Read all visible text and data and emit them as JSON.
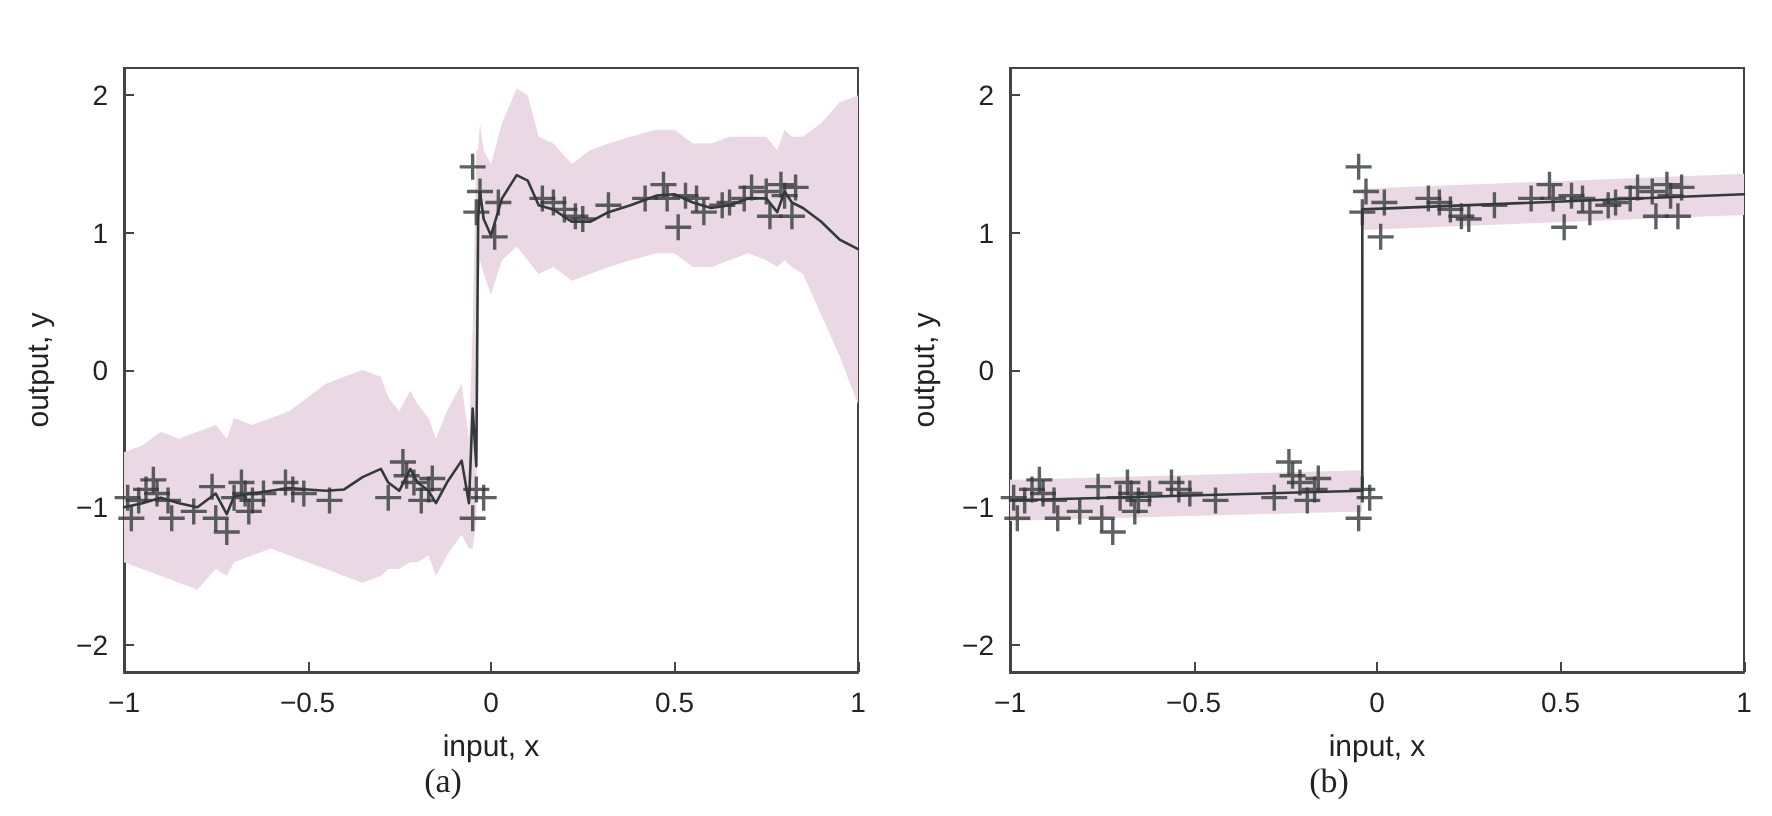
{
  "chart_data": [
    {
      "type": "scatter",
      "title": "(a)",
      "xlabel": "input, x",
      "ylabel": "output, y",
      "xlim": [
        -1,
        1
      ],
      "xticks": [
        -1,
        -0.5,
        0,
        0.5,
        1
      ],
      "ylim": [
        -2.2,
        2.2
      ],
      "yticks": [
        -2,
        -1,
        0,
        1,
        2
      ],
      "grid": false,
      "series": [
        {
          "type": "scatter",
          "marker": "cross",
          "color": "#333a3a",
          "x": [
            -0.99,
            -0.98,
            -0.96,
            -0.94,
            -0.92,
            -0.91,
            -0.88,
            -0.87,
            -0.81,
            -0.76,
            -0.75,
            -0.72,
            -0.7,
            -0.68,
            -0.67,
            -0.66,
            -0.65,
            -0.62,
            -0.56,
            -0.54,
            -0.51,
            -0.44,
            -0.28,
            -0.24,
            -0.23,
            -0.21,
            -0.19,
            -0.17,
            -0.16,
            -0.05,
            -0.04,
            -0.02,
            -0.05,
            -0.04,
            -0.03,
            0.01,
            0.02,
            0.14,
            0.17,
            0.2,
            0.23,
            0.25,
            0.32,
            0.42,
            0.47,
            0.48,
            0.51,
            0.53,
            0.56,
            0.58,
            0.63,
            0.65,
            0.69,
            0.71,
            0.75,
            0.76,
            0.79,
            0.8,
            0.82,
            0.83
          ],
          "values": [
            -0.93,
            -1.08,
            -0.95,
            -0.87,
            -0.8,
            -0.9,
            -0.95,
            -1.08,
            -1.03,
            -0.85,
            -1.08,
            -1.18,
            -0.93,
            -0.82,
            -0.9,
            -1.03,
            -0.95,
            -0.9,
            -0.82,
            -0.87,
            -0.9,
            -0.95,
            -0.93,
            -0.67,
            -0.77,
            -0.82,
            -0.95,
            -0.87,
            -0.79,
            -1.08,
            -0.87,
            -0.93,
            1.48,
            1.15,
            1.3,
            0.97,
            1.22,
            1.25,
            1.22,
            1.17,
            1.12,
            1.1,
            1.2,
            1.25,
            1.35,
            1.25,
            1.04,
            1.27,
            1.25,
            1.15,
            1.2,
            1.22,
            1.25,
            1.33,
            1.3,
            1.12,
            1.35,
            1.27,
            1.12,
            1.33
          ]
        },
        {
          "type": "line",
          "marker": "none",
          "line_style": "solid",
          "color": "#333a3a",
          "x": [
            -1,
            -0.95,
            -0.9,
            -0.85,
            -0.8,
            -0.75,
            -0.72,
            -0.7,
            -0.65,
            -0.6,
            -0.55,
            -0.5,
            -0.45,
            -0.4,
            -0.35,
            -0.3,
            -0.28,
            -0.25,
            -0.22,
            -0.2,
            -0.17,
            -0.15,
            -0.12,
            -0.08,
            -0.06,
            -0.05,
            -0.04,
            -0.035,
            -0.03,
            -0.02,
            0,
            0.03,
            0.07,
            0.1,
            0.13,
            0.17,
            0.22,
            0.27,
            0.32,
            0.38,
            0.45,
            0.5,
            0.55,
            0.6,
            0.65,
            0.7,
            0.75,
            0.78,
            0.8,
            0.82,
            0.85,
            0.9,
            0.95,
            1
          ],
          "values": [
            -1.0,
            -0.97,
            -0.93,
            -0.97,
            -1.0,
            -0.9,
            -1.05,
            -0.92,
            -0.9,
            -0.88,
            -0.86,
            -0.87,
            -0.88,
            -0.87,
            -0.78,
            -0.72,
            -0.82,
            -0.88,
            -0.72,
            -0.82,
            -0.88,
            -0.97,
            -0.82,
            -0.66,
            -0.97,
            -0.28,
            -0.7,
            1.1,
            1.3,
            1.1,
            0.98,
            1.25,
            1.42,
            1.38,
            1.2,
            1.17,
            1.08,
            1.08,
            1.15,
            1.2,
            1.27,
            1.28,
            1.22,
            1.18,
            1.2,
            1.25,
            1.25,
            1.15,
            1.3,
            1.22,
            1.18,
            1.08,
            0.95,
            0.88
          ],
          "lower": [
            -1.4,
            -1.45,
            -1.5,
            -1.55,
            -1.6,
            -1.45,
            -1.5,
            -1.4,
            -1.35,
            -1.3,
            -1.35,
            -1.4,
            -1.45,
            -1.5,
            -1.55,
            -1.5,
            -1.45,
            -1.45,
            -1.4,
            -1.4,
            -1.35,
            -1.5,
            -1.35,
            -1.2,
            -1.3,
            -1.3,
            -1.1,
            0.6,
            0.8,
            0.7,
            0.55,
            0.8,
            0.9,
            0.8,
            0.7,
            0.75,
            0.65,
            0.7,
            0.75,
            0.8,
            0.85,
            0.85,
            0.75,
            0.75,
            0.8,
            0.85,
            0.8,
            0.75,
            0.8,
            0.75,
            0.7,
            0.4,
            0.1,
            -0.25
          ],
          "upper": [
            -0.6,
            -0.55,
            -0.45,
            -0.5,
            -0.45,
            -0.4,
            -0.5,
            -0.35,
            -0.4,
            -0.35,
            -0.3,
            -0.2,
            -0.1,
            -0.05,
            0.0,
            -0.05,
            -0.2,
            -0.3,
            -0.15,
            -0.25,
            -0.35,
            -0.5,
            -0.3,
            -0.1,
            -0.5,
            0.3,
            1.6,
            1.6,
            1.8,
            1.6,
            1.5,
            1.8,
            2.05,
            2.0,
            1.7,
            1.65,
            1.5,
            1.6,
            1.65,
            1.7,
            1.75,
            1.75,
            1.65,
            1.65,
            1.7,
            1.7,
            1.7,
            1.6,
            1.75,
            1.7,
            1.7,
            1.8,
            1.95,
            2.0
          ]
        }
      ]
    },
    {
      "type": "scatter",
      "title": "(b)",
      "xlabel": "input, x",
      "ylabel": "output, y",
      "xlim": [
        -1,
        1
      ],
      "xticks": [
        -1,
        -0.5,
        0,
        0.5,
        1
      ],
      "ylim": [
        -2.2,
        2.2
      ],
      "yticks": [
        -2,
        -1,
        0,
        1,
        2
      ],
      "grid": false,
      "series": [
        {
          "type": "scatter",
          "marker": "cross",
          "color": "#333a3a",
          "x": [
            -0.99,
            -0.98,
            -0.96,
            -0.94,
            -0.92,
            -0.91,
            -0.88,
            -0.87,
            -0.81,
            -0.76,
            -0.75,
            -0.72,
            -0.7,
            -0.68,
            -0.67,
            -0.66,
            -0.65,
            -0.62,
            -0.56,
            -0.54,
            -0.51,
            -0.44,
            -0.28,
            -0.24,
            -0.23,
            -0.21,
            -0.19,
            -0.17,
            -0.16,
            -0.05,
            -0.04,
            -0.02,
            -0.05,
            -0.04,
            -0.03,
            0.01,
            0.02,
            0.14,
            0.17,
            0.2,
            0.23,
            0.25,
            0.32,
            0.42,
            0.47,
            0.48,
            0.51,
            0.53,
            0.56,
            0.58,
            0.63,
            0.65,
            0.69,
            0.71,
            0.75,
            0.76,
            0.79,
            0.8,
            0.82,
            0.83
          ],
          "values": [
            -0.93,
            -1.08,
            -0.95,
            -0.87,
            -0.8,
            -0.9,
            -0.95,
            -1.08,
            -1.03,
            -0.85,
            -1.08,
            -1.18,
            -0.93,
            -0.82,
            -0.9,
            -1.03,
            -0.95,
            -0.9,
            -0.82,
            -0.87,
            -0.9,
            -0.95,
            -0.93,
            -0.67,
            -0.77,
            -0.82,
            -0.95,
            -0.87,
            -0.79,
            -1.08,
            -0.87,
            -0.93,
            1.48,
            1.15,
            1.3,
            0.97,
            1.22,
            1.25,
            1.22,
            1.17,
            1.12,
            1.1,
            1.2,
            1.25,
            1.35,
            1.25,
            1.04,
            1.27,
            1.25,
            1.15,
            1.2,
            1.22,
            1.25,
            1.33,
            1.3,
            1.12,
            1.35,
            1.27,
            1.12,
            1.33
          ]
        },
        {
          "type": "line",
          "marker": "none",
          "line_style": "solid",
          "color": "#333a3a",
          "x": [
            -1,
            -0.04,
            -0.04,
            1
          ],
          "values": [
            -0.95,
            -0.88,
            1.17,
            1.28
          ],
          "lower": [
            -1.1,
            -1.03,
            1.02,
            1.13
          ],
          "upper": [
            -0.8,
            -0.73,
            1.32,
            1.43
          ]
        }
      ]
    }
  ]
}
